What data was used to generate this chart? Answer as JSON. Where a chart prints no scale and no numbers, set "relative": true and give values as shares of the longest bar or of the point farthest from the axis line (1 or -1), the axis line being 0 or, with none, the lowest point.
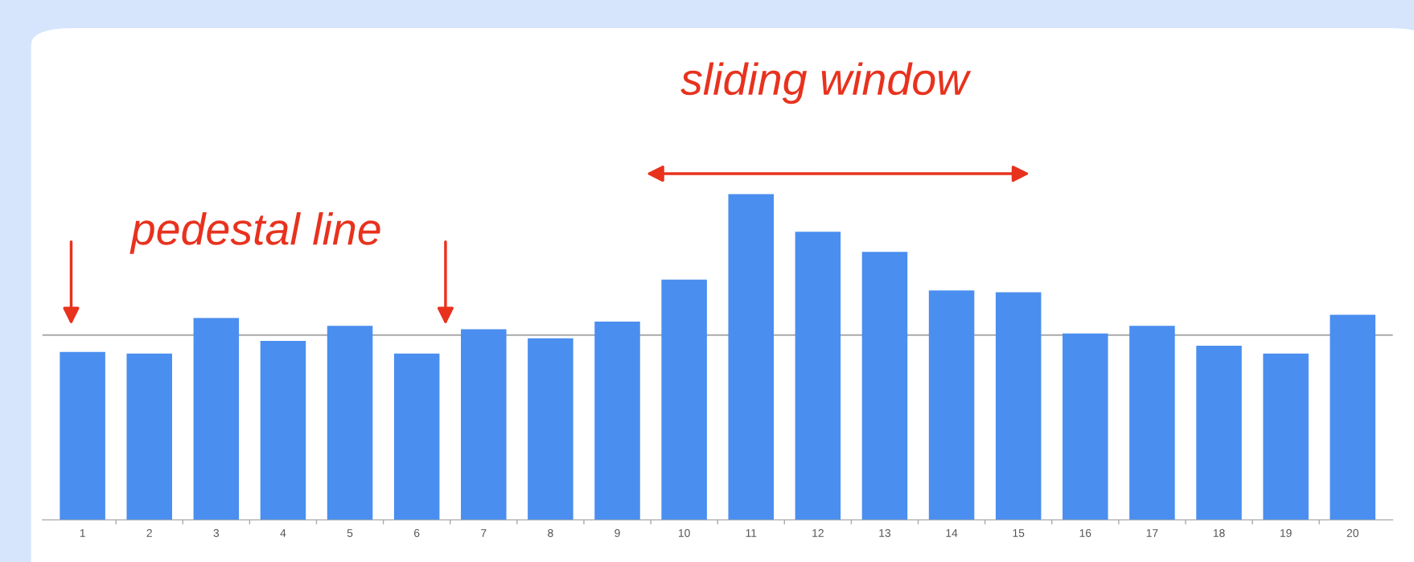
{
  "chart_data": {
    "type": "bar",
    "relative": true,
    "categories": [
      "1",
      "2",
      "3",
      "4",
      "5",
      "6",
      "7",
      "8",
      "9",
      "10",
      "11",
      "12",
      "13",
      "14",
      "15",
      "16",
      "17",
      "18",
      "19",
      "20"
    ],
    "values": [
      0.515,
      0.51,
      0.619,
      0.549,
      0.595,
      0.51,
      0.585,
      0.557,
      0.608,
      0.737,
      1,
      0.884,
      0.822,
      0.704,
      0.698,
      0.572,
      0.595,
      0.534,
      0.51,
      0.629
    ],
    "color": "#4a8ef0",
    "ref_lines": [
      {
        "axis": "y",
        "value": 0.567,
        "label": "pedestal line",
        "color": "#a8a8a8"
      }
    ],
    "annotations": [
      "sliding window"
    ]
  }
}
